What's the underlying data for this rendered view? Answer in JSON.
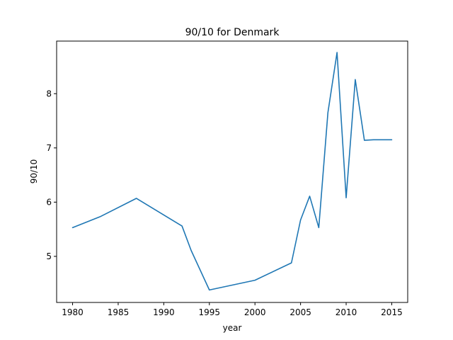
{
  "chart_data": {
    "type": "line",
    "title": "90/10 for Denmark",
    "xlabel": "year",
    "ylabel": "90/10",
    "xlim": [
      1978.25,
      2016.75
    ],
    "ylim": [
      4.15,
      8.97
    ],
    "xticks": [
      1980,
      1985,
      1990,
      1995,
      2000,
      2005,
      2010,
      2015
    ],
    "yticks": [
      5,
      6,
      7,
      8
    ],
    "grid": false,
    "series": [
      {
        "color": "#1f77b4",
        "x": [
          1980,
          1983,
          1987,
          1992,
          1993,
          1995,
          2000,
          2004,
          2005,
          2006,
          2007,
          2008,
          2009,
          2010,
          2011,
          2012,
          2013,
          2015
        ],
        "y": [
          5.53,
          5.73,
          6.07,
          5.56,
          5.11,
          4.38,
          4.56,
          4.88,
          5.67,
          6.11,
          5.53,
          7.65,
          8.76,
          6.08,
          8.26,
          7.14,
          7.15,
          7.15
        ]
      }
    ]
  }
}
